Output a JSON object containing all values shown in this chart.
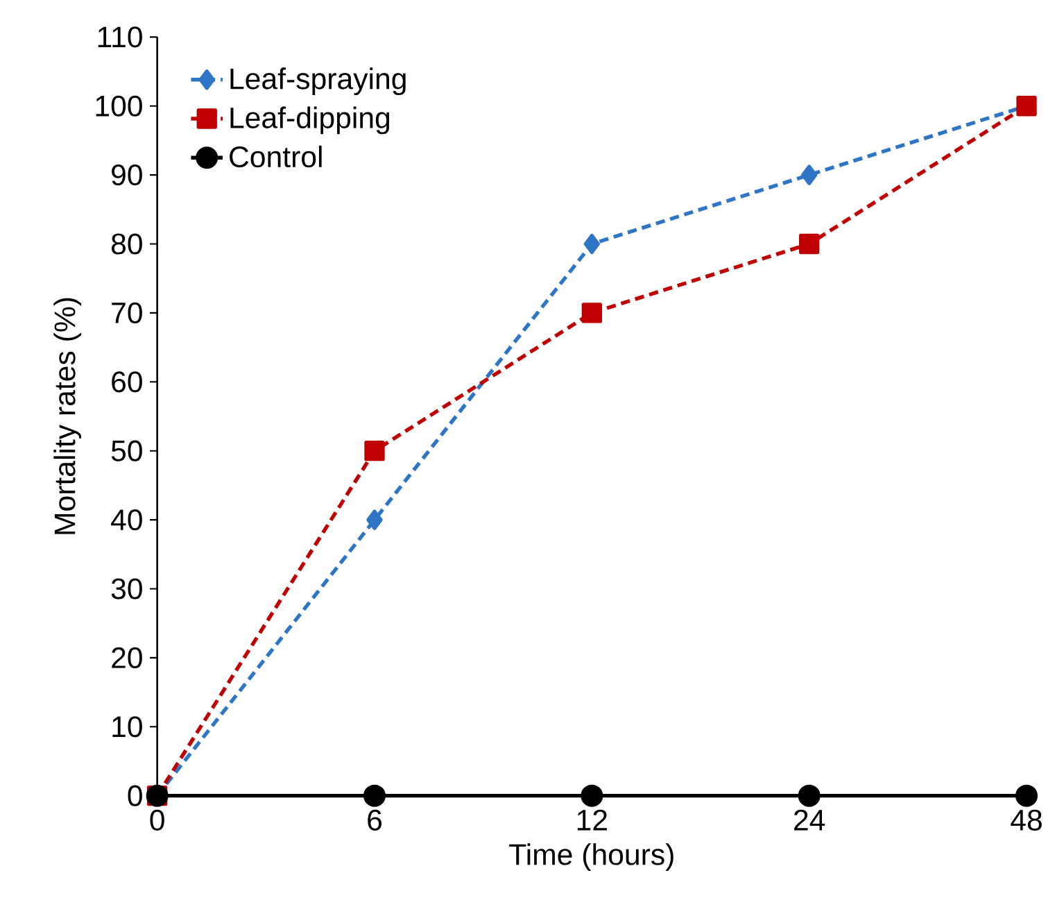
{
  "chart_data": {
    "type": "line",
    "xlabel": "Time (hours)",
    "ylabel": "Mortality rates (%)",
    "categories": [
      "0",
      "6",
      "12",
      "24",
      "48"
    ],
    "series": [
      {
        "name": "Leaf-spraying",
        "color": "#2e75c6",
        "values": [
          0,
          40,
          80,
          90,
          100
        ],
        "marker": "diamond",
        "line_style": "dashed"
      },
      {
        "name": "Leaf-dipping",
        "color": "#c00000",
        "values": [
          0,
          50,
          70,
          80,
          100
        ],
        "marker": "square",
        "line_style": "dashed"
      },
      {
        "name": "Control",
        "color": "#000000",
        "values": [
          0,
          0,
          0,
          0,
          0
        ],
        "marker": "circle",
        "line_style": "solid"
      }
    ],
    "ylim": [
      0,
      110
    ],
    "yticks": [
      0,
      10,
      20,
      30,
      40,
      50,
      60,
      70,
      80,
      90,
      100,
      110
    ],
    "legend": "top left",
    "grid": false
  }
}
